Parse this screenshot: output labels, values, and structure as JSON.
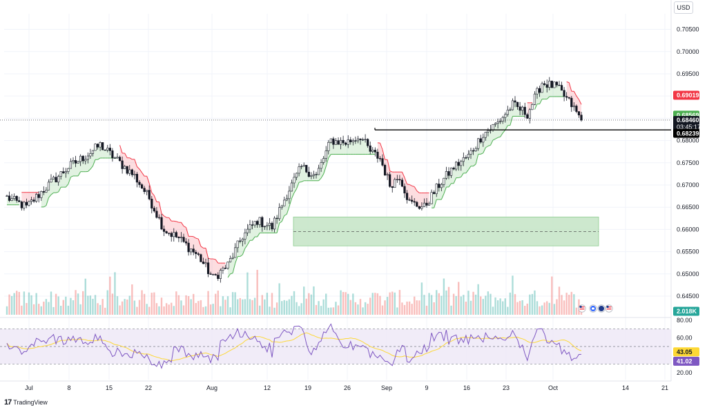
{
  "currency": "USD",
  "branding": "TradingView",
  "colors": {
    "up": "#26a69a",
    "down": "#ef5350",
    "upBand": "#4caf50",
    "downBand": "#f23645",
    "rsiLine": "#7e57c2",
    "rsiMa": "#fdd835",
    "zoneFill": "#c8e6c9",
    "grid": "#f0f3fa"
  },
  "icons": [
    "us-flag-icon",
    "calendar-event-icon",
    "au-flag-icon",
    "us-flag-icon"
  ],
  "chart_data": [
    {
      "type": "candlestick",
      "pair": "",
      "title": "",
      "ylim": [
        0.6405,
        0.7085
      ],
      "y_ticks": [
        "0.70500",
        "0.70000",
        "0.69500",
        "0.69000",
        "0.68500",
        "0.68000",
        "0.67500",
        "0.67000",
        "0.66500",
        "0.66000",
        "0.65500",
        "0.65000",
        "0.64500"
      ],
      "x_ticks": [
        "Jul",
        "8",
        "15",
        "22",
        "Aug",
        "12",
        "19",
        "26",
        "Sep",
        "9",
        "16",
        "23",
        "Oct",
        "14",
        "21"
      ],
      "path_points": [
        [
          0,
          0.6672
        ],
        [
          8,
          0.665
        ],
        [
          16,
          0.6695
        ],
        [
          25,
          0.674
        ],
        [
          32,
          0.6765
        ],
        [
          38,
          0.679
        ],
        [
          44,
          0.676
        ],
        [
          52,
          0.672
        ],
        [
          58,
          0.667
        ],
        [
          64,
          0.66
        ],
        [
          70,
          0.658
        ],
        [
          78,
          0.654
        ],
        [
          84,
          0.649
        ],
        [
          90,
          0.652
        ],
        [
          96,
          0.6585
        ],
        [
          102,
          0.662
        ],
        [
          108,
          0.6605
        ],
        [
          114,
          0.668
        ],
        [
          120,
          0.674
        ],
        [
          126,
          0.672
        ],
        [
          132,
          0.68
        ],
        [
          138,
          0.6795
        ],
        [
          144,
          0.681
        ],
        [
          148,
          0.6775
        ],
        [
          152,
          0.676
        ],
        [
          156,
          0.67
        ],
        [
          160,
          0.672
        ],
        [
          164,
          0.666
        ],
        [
          170,
          0.665
        ],
        [
          176,
          0.67
        ],
        [
          182,
          0.674
        ],
        [
          188,
          0.6765
        ],
        [
          194,
          0.6815
        ],
        [
          200,
          0.684
        ],
        [
          206,
          0.688
        ],
        [
          212,
          0.686
        ],
        [
          218,
          0.693
        ],
        [
          224,
          0.692
        ],
        [
          230,
          0.688
        ],
        [
          234,
          0.6846
        ]
      ],
      "last_price": "0.68460",
      "countdown": "03:45:17",
      "price_labels": [
        {
          "value": "0.69019",
          "y": 0.69019,
          "style": "down-band"
        },
        {
          "value": "0.68569",
          "y": 0.68569,
          "style": "up-band"
        },
        {
          "value": "0.68460",
          "y": 0.6846,
          "style": "last"
        },
        {
          "value": "0.68239",
          "y": 0.68239,
          "style": "level"
        }
      ],
      "resistance_level": 0.68239,
      "demand_zone": {
        "low": 0.6563,
        "high": 0.6628,
        "mid": 0.6595
      },
      "volume_label": "2.018K"
    },
    {
      "type": "line",
      "title": "",
      "ylim": [
        20,
        80
      ],
      "y_ticks": [
        "80.00",
        "60.00",
        "20.00"
      ],
      "bands": [
        70,
        50,
        30
      ],
      "rsi_value": "41.02",
      "rsi_ma_value": "43.05"
    }
  ]
}
